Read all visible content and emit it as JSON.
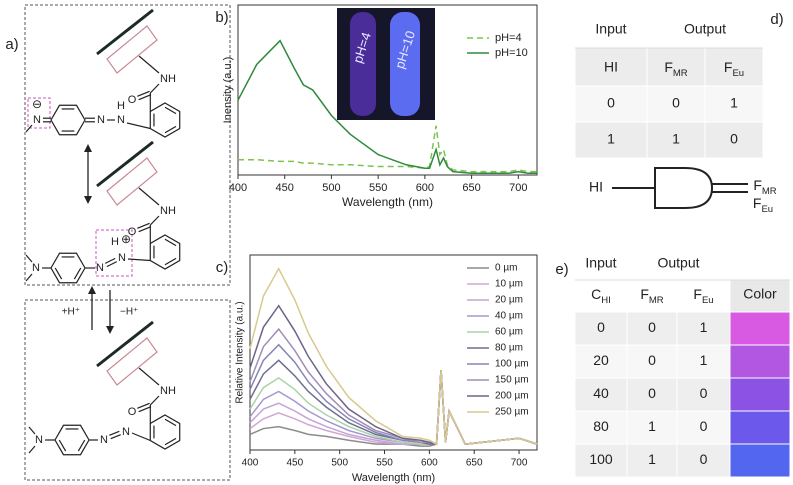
{
  "panel_labels": [
    "a)",
    "b)",
    "c)",
    "d)",
    "e)"
  ],
  "panel_a": {
    "structures": [
      {
        "labels": [
          "O",
          "NH",
          "N",
          "N",
          "H",
          "N",
          "⊖"
        ]
      },
      {
        "labels": [
          "O",
          "NH",
          "N",
          "N",
          "N",
          "H",
          "⊕"
        ]
      },
      {
        "labels": [
          "O",
          "NH",
          "N",
          "N",
          "N"
        ]
      }
    ],
    "arrow_labels": [
      "+H⁺",
      "−H⁺"
    ]
  },
  "chart_data": [
    {
      "type": "line",
      "xlabel": "Wavelength (nm)",
      "ylabel": "Inensity (a.u.)",
      "x": [
        400,
        420,
        445,
        460,
        470,
        480,
        500,
        520,
        550,
        580,
        600,
        605,
        612,
        616,
        620,
        624,
        630,
        650,
        690,
        700,
        710,
        720
      ],
      "series": [
        {
          "name": "pH=4",
          "color": "#7cc34f",
          "line_style": "dashed",
          "values": [
            9,
            9,
            8,
            8,
            7,
            7,
            6,
            6,
            5,
            5,
            4,
            5,
            29,
            12,
            15,
            6,
            3,
            2,
            2,
            3,
            2,
            2
          ]
        },
        {
          "name": "pH=10",
          "color": "#2f8a3b",
          "line_style": "solid",
          "values": [
            44,
            65,
            79,
            63,
            53,
            50,
            35,
            24,
            12,
            6,
            4,
            4,
            15,
            6,
            10,
            5,
            2,
            1,
            1,
            2,
            1,
            1
          ]
        }
      ],
      "xlim": [
        400,
        720
      ],
      "ylim": [
        0,
        100
      ],
      "xticks": [
        400,
        450,
        500,
        550,
        600,
        650,
        700
      ],
      "legend": "upper right",
      "inset_labels": [
        "pH=4",
        "pH=10"
      ]
    },
    {
      "type": "line",
      "xlabel": "Wavelength (nm)",
      "ylabel": "Relative Intensity (a.u.)",
      "x": [
        400,
        415,
        432,
        450,
        465,
        485,
        510,
        540,
        570,
        590,
        600,
        608,
        613,
        618,
        622,
        640,
        700,
        720
      ],
      "series": [
        {
          "name": "0 µm",
          "color": "#8c8c8c",
          "line_style": "solid",
          "values": [
            8,
            11,
            12,
            10,
            8,
            7,
            5,
            3,
            3,
            2,
            2,
            3,
            41,
            4,
            20,
            3,
            6,
            3
          ]
        },
        {
          "name": "10 µm",
          "color": "#d3a6d3",
          "line_style": "solid",
          "values": [
            11,
            16,
            19,
            16,
            13,
            10,
            7,
            4,
            3,
            3,
            3,
            3,
            41,
            4,
            20,
            3,
            6,
            3
          ]
        },
        {
          "name": "20 µm",
          "color": "#c2a5d6",
          "line_style": "solid",
          "values": [
            14,
            21,
            24,
            20,
            16,
            12,
            8,
            5,
            3,
            3,
            3,
            3,
            41,
            4,
            20,
            3,
            6,
            3
          ]
        },
        {
          "name": "40 µm",
          "color": "#a996cf",
          "line_style": "solid",
          "values": [
            17,
            26,
            30,
            25,
            20,
            15,
            10,
            6,
            4,
            3,
            3,
            3,
            41,
            4,
            20,
            3,
            6,
            3
          ]
        },
        {
          "name": "60 µm",
          "color": "#a9d4a6",
          "line_style": "solid",
          "values": [
            21,
            32,
            37,
            31,
            24,
            18,
            12,
            7,
            4,
            3,
            3,
            3,
            41,
            4,
            20,
            3,
            6,
            3
          ]
        },
        {
          "name": "80 µm",
          "color": "#6f6f92",
          "line_style": "solid",
          "values": [
            26,
            39,
            46,
            38,
            30,
            22,
            14,
            8,
            5,
            4,
            3,
            3,
            41,
            4,
            20,
            3,
            6,
            3
          ]
        },
        {
          "name": "100 µm",
          "color": "#8585b8",
          "line_style": "solid",
          "values": [
            31,
            46,
            54,
            45,
            35,
            25,
            16,
            9,
            5,
            4,
            4,
            3,
            41,
            4,
            20,
            3,
            6,
            3
          ]
        },
        {
          "name": "150 µm",
          "color": "#a08eb6",
          "line_style": "solid",
          "values": [
            35,
            53,
            62,
            51,
            40,
            29,
            18,
            10,
            6,
            4,
            4,
            3,
            41,
            4,
            20,
            3,
            6,
            3
          ]
        },
        {
          "name": "200 µm",
          "color": "#6c6588",
          "line_style": "solid",
          "values": [
            42,
            63,
            74,
            61,
            48,
            34,
            21,
            12,
            6,
            5,
            4,
            3,
            41,
            4,
            20,
            3,
            6,
            3
          ]
        },
        {
          "name": "250 µm",
          "color": "#d8c98f",
          "line_style": "solid",
          "values": [
            52,
            79,
            93,
            77,
            60,
            43,
            27,
            15,
            7,
            6,
            5,
            3,
            41,
            4,
            20,
            3,
            6,
            3
          ]
        }
      ],
      "xlim": [
        400,
        720
      ],
      "ylim": [
        0,
        100
      ],
      "xticks": [
        400,
        450,
        500,
        550,
        600,
        650,
        700
      ],
      "legend": "upper right"
    }
  ],
  "table_d": {
    "header": [
      "Input",
      "Output"
    ],
    "columns": [
      "HI",
      {
        "symbol": "F",
        "subscript": "MR"
      },
      {
        "symbol": "F",
        "subscript": "Eu"
      }
    ],
    "rows": [
      [
        0,
        0,
        1
      ],
      [
        1,
        1,
        0
      ]
    ]
  },
  "gate_d": {
    "input": "HI",
    "outputs": [
      {
        "symbol": "F",
        "subscript": "MR"
      },
      {
        "symbol": "F",
        "subscript": "Eu"
      }
    ]
  },
  "table_e": {
    "header": [
      "Input",
      "Output"
    ],
    "columns": [
      {
        "symbol": "C",
        "subscript": "HI"
      },
      {
        "symbol": "F",
        "subscript": "MR"
      },
      {
        "symbol": "F",
        "subscript": "Eu"
      },
      "Color"
    ],
    "rows": [
      [
        0,
        0,
        1
      ],
      [
        20,
        0,
        1
      ],
      [
        40,
        0,
        0
      ],
      [
        80,
        1,
        0
      ],
      [
        100,
        1,
        0
      ]
    ],
    "row_colors": [
      "#d95ae2",
      "#b257e2",
      "#8c52e4",
      "#6c58ea",
      "#5366f0"
    ]
  }
}
